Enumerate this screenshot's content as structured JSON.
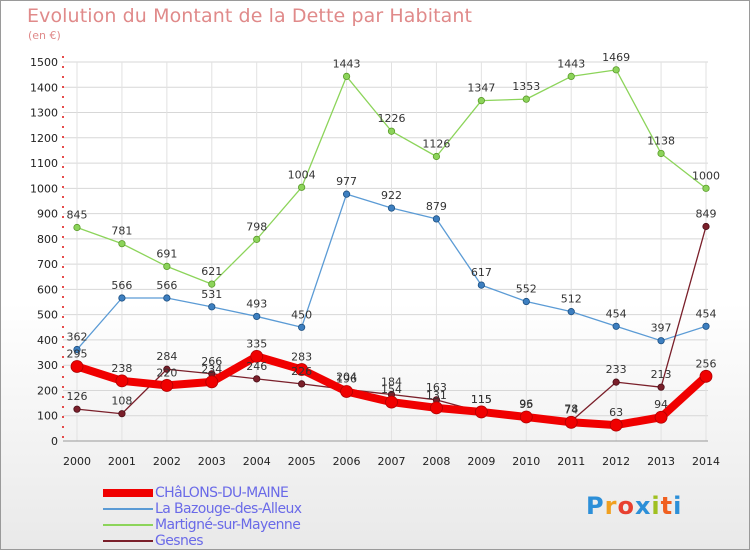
{
  "header": {
    "title": "Evolution du Montant de la Dette par Habitant",
    "subtitle": "(en €)"
  },
  "logo": {
    "text": "Proxiti"
  },
  "chart_data": {
    "type": "line",
    "title": "Evolution du Montant de la Dette par Habitant",
    "subtitle": "(en €)",
    "xlabel": "",
    "ylabel": "",
    "x": [
      2000,
      2001,
      2002,
      2003,
      2004,
      2005,
      2006,
      2007,
      2008,
      2009,
      2010,
      2011,
      2012,
      2013,
      2014
    ],
    "ylim": [
      0,
      1500
    ],
    "yticks": [
      0,
      100,
      200,
      300,
      400,
      500,
      600,
      700,
      800,
      900,
      1000,
      1100,
      1200,
      1300,
      1400,
      1500
    ],
    "grid": true,
    "legend_position": "bottom-left",
    "series": [
      {
        "name": "Martigné-sur-Mayenne",
        "color": "#8cd45a",
        "values": [
          845,
          781,
          691,
          621,
          798,
          1004,
          1443,
          1226,
          1126,
          1347,
          1353,
          1443,
          1469,
          1138,
          1000
        ]
      },
      {
        "name": "La Bazouge-des-Alleux",
        "color": "#5b9bd5",
        "values": [
          362,
          566,
          566,
          531,
          493,
          450,
          977,
          922,
          879,
          617,
          552,
          512,
          454,
          397,
          454
        ]
      },
      {
        "name": "Gesnes",
        "color": "#7a1f2a",
        "values": [
          126,
          108,
          284,
          266,
          246,
          226,
          204,
          184,
          163,
          115,
          96,
          78,
          233,
          213,
          849
        ]
      },
      {
        "name": "CHâLONS-DU-MAINE",
        "color": "#f00000",
        "values": [
          295,
          238,
          220,
          234,
          335,
          283,
          196,
          154,
          131,
          115,
          95,
          74,
          63,
          94,
          256
        ]
      }
    ]
  }
}
